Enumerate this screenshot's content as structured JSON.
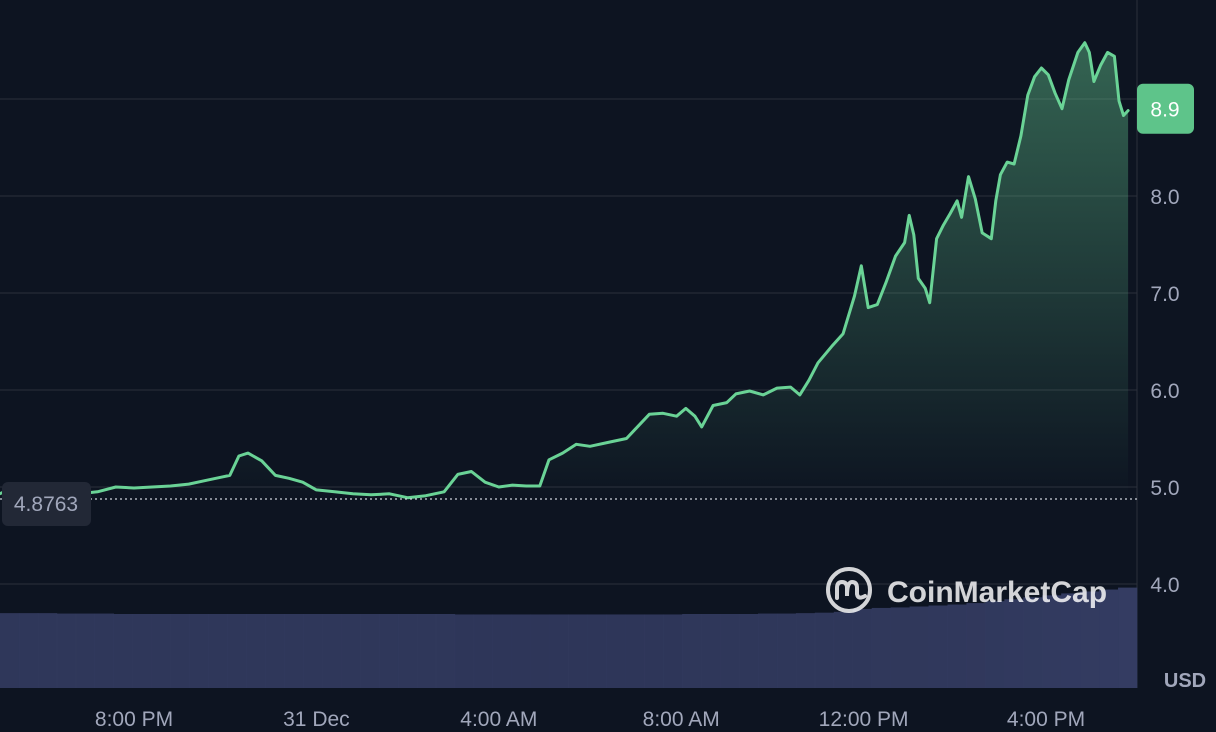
{
  "colors": {
    "background": "#0d1421",
    "grid": "#2b303c",
    "line": "#6ad396",
    "line_below_open": "#ea3943",
    "badge": "#5ec48a",
    "volume": "#343c62",
    "text": "#a1a7bb"
  },
  "currency_label": "USD",
  "watermark": "CoinMarketCap",
  "watermark_icon": "coinmarketcap-logo-icon",
  "chart_data": {
    "type": "area",
    "title": "",
    "xlabel": "",
    "ylabel": "",
    "currency": "USD",
    "ylim": [
      3.0,
      9.9
    ],
    "yticks": [
      4.0,
      5.0,
      6.0,
      7.0,
      8.0
    ],
    "ytick_labels": [
      "4.0",
      "5.0",
      "6.0",
      "7.0",
      "8.0"
    ],
    "xticks": [
      {
        "label": "8:00 PM",
        "hour": 4
      },
      {
        "label": "31 Dec",
        "hour": 8
      },
      {
        "label": "4:00 AM",
        "hour": 12
      },
      {
        "label": "8:00 AM",
        "hour": 16
      },
      {
        "label": "12:00 PM",
        "hour": 20
      },
      {
        "label": "4:00 PM",
        "hour": 24
      }
    ],
    "x_domain_hours": [
      1.0,
      25.8
    ],
    "open_price": 4.8763,
    "open_label": "4.8763",
    "current_price": 8.9,
    "current_label": "8.9",
    "grid": true,
    "series": [
      {
        "type": "line",
        "points": [
          [
            1.0,
            4.92
          ],
          [
            1.3,
            4.98
          ],
          [
            1.7,
            4.97
          ],
          [
            2.0,
            4.96
          ],
          [
            2.4,
            4.95
          ],
          [
            2.8,
            4.93
          ],
          [
            3.2,
            4.95
          ],
          [
            3.6,
            5.0
          ],
          [
            4.0,
            4.99
          ],
          [
            4.4,
            5.0
          ],
          [
            4.8,
            5.01
          ],
          [
            5.2,
            5.03
          ],
          [
            5.6,
            5.07
          ],
          [
            5.9,
            5.1
          ],
          [
            6.1,
            5.12
          ],
          [
            6.3,
            5.32
          ],
          [
            6.5,
            5.35
          ],
          [
            6.8,
            5.27
          ],
          [
            7.1,
            5.12
          ],
          [
            7.4,
            5.09
          ],
          [
            7.7,
            5.05
          ],
          [
            8.0,
            4.97
          ],
          [
            8.4,
            4.95
          ],
          [
            8.8,
            4.93
          ],
          [
            9.2,
            4.92
          ],
          [
            9.6,
            4.93
          ],
          [
            10.0,
            4.89
          ],
          [
            10.4,
            4.91
          ],
          [
            10.8,
            4.95
          ],
          [
            11.1,
            5.13
          ],
          [
            11.4,
            5.16
          ],
          [
            11.7,
            5.05
          ],
          [
            12.0,
            5.0
          ],
          [
            12.3,
            5.02
          ],
          [
            12.6,
            5.01
          ],
          [
            12.9,
            5.01
          ],
          [
            13.1,
            5.28
          ],
          [
            13.4,
            5.35
          ],
          [
            13.7,
            5.44
          ],
          [
            14.0,
            5.42
          ],
          [
            14.4,
            5.46
          ],
          [
            14.8,
            5.5
          ],
          [
            15.0,
            5.6
          ],
          [
            15.3,
            5.75
          ],
          [
            15.6,
            5.76
          ],
          [
            15.9,
            5.73
          ],
          [
            16.1,
            5.81
          ],
          [
            16.3,
            5.73
          ],
          [
            16.45,
            5.62
          ],
          [
            16.7,
            5.84
          ],
          [
            17.0,
            5.87
          ],
          [
            17.2,
            5.96
          ],
          [
            17.5,
            5.99
          ],
          [
            17.8,
            5.95
          ],
          [
            18.1,
            6.02
          ],
          [
            18.4,
            6.03
          ],
          [
            18.6,
            5.95
          ],
          [
            18.8,
            6.1
          ],
          [
            19.0,
            6.28
          ],
          [
            19.3,
            6.45
          ],
          [
            19.55,
            6.58
          ],
          [
            19.8,
            6.97
          ],
          [
            19.95,
            7.28
          ],
          [
            20.1,
            6.85
          ],
          [
            20.3,
            6.88
          ],
          [
            20.5,
            7.12
          ],
          [
            20.7,
            7.38
          ],
          [
            20.9,
            7.52
          ],
          [
            21.0,
            7.8
          ],
          [
            21.1,
            7.6
          ],
          [
            21.2,
            7.15
          ],
          [
            21.35,
            7.05
          ],
          [
            21.45,
            6.9
          ],
          [
            21.6,
            7.56
          ],
          [
            21.75,
            7.7
          ],
          [
            21.9,
            7.82
          ],
          [
            22.05,
            7.95
          ],
          [
            22.15,
            7.78
          ],
          [
            22.3,
            8.2
          ],
          [
            22.45,
            7.97
          ],
          [
            22.6,
            7.62
          ],
          [
            22.8,
            7.56
          ],
          [
            22.9,
            7.95
          ],
          [
            23.0,
            8.22
          ],
          [
            23.15,
            8.35
          ],
          [
            23.3,
            8.33
          ],
          [
            23.45,
            8.62
          ],
          [
            23.6,
            9.04
          ],
          [
            23.75,
            9.23
          ],
          [
            23.9,
            9.32
          ],
          [
            24.05,
            9.25
          ],
          [
            24.2,
            9.06
          ],
          [
            24.35,
            8.9
          ],
          [
            24.5,
            9.2
          ],
          [
            24.7,
            9.48
          ],
          [
            24.85,
            9.58
          ],
          [
            24.95,
            9.48
          ],
          [
            25.05,
            9.18
          ],
          [
            25.2,
            9.35
          ],
          [
            25.35,
            9.48
          ],
          [
            25.5,
            9.44
          ],
          [
            25.6,
            8.98
          ],
          [
            25.7,
            8.83
          ],
          [
            25.8,
            8.88
          ]
        ]
      },
      {
        "type": "volume",
        "values": [
          0.52,
          0.52,
          0.52,
          0.51,
          0.51,
          0.51,
          0.5,
          0.5,
          0.5,
          0.5,
          0.5,
          0.5,
          0.5,
          0.5,
          0.5,
          0.5,
          0.5,
          0.5,
          0.5,
          0.5,
          0.5,
          0.5,
          0.5,
          0.5,
          0.49,
          0.49,
          0.49,
          0.49,
          0.49,
          0.49,
          0.49,
          0.49,
          0.49,
          0.49,
          0.49,
          0.49,
          0.5,
          0.5,
          0.5,
          0.5,
          0.51,
          0.51,
          0.52,
          0.53,
          0.55,
          0.56,
          0.58,
          0.59,
          0.61,
          0.63,
          0.65,
          0.68,
          0.72,
          0.76,
          0.8,
          0.84,
          0.88,
          0.92,
          0.96,
          1.0
        ]
      }
    ]
  }
}
